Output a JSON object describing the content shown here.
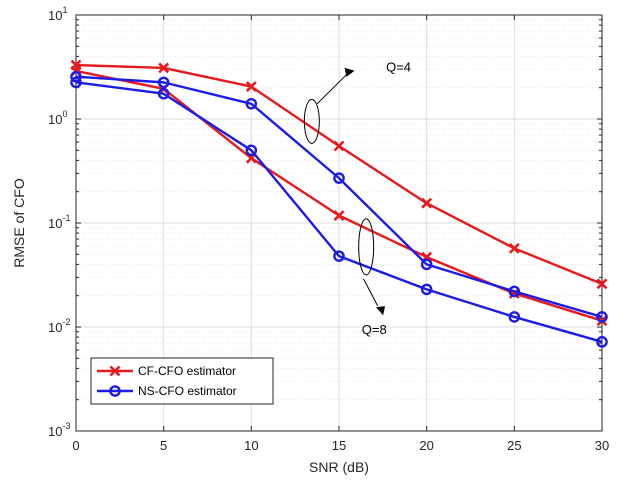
{
  "chart_data": {
    "type": "line",
    "xlabel": "SNR (dB)",
    "ylabel": "RMSE of CFO",
    "xlim": [
      0,
      30
    ],
    "ylim": [
      0.001,
      10
    ],
    "yscale": "log",
    "grid": true,
    "legend_position": "bottom-left",
    "x": [
      0,
      5,
      10,
      15,
      20,
      25,
      30
    ],
    "x_ticks": [
      "0",
      "5",
      "10",
      "15",
      "20",
      "25",
      "30"
    ],
    "y_ticks": [
      {
        "value": 0.001,
        "base": "10",
        "exp": "-3"
      },
      {
        "value": 0.01,
        "base": "10",
        "exp": "-2"
      },
      {
        "value": 0.1,
        "base": "10",
        "exp": "-1"
      },
      {
        "value": 1,
        "base": "10",
        "exp": "0"
      },
      {
        "value": 10,
        "base": "10",
        "exp": "1"
      }
    ],
    "series": [
      {
        "name": "CF-CFO estimator",
        "group": "Q=4",
        "color": "#e8191c",
        "marker": "x",
        "values": [
          3.3,
          3.1,
          2.05,
          0.55,
          0.155,
          0.057,
          0.026
        ]
      },
      {
        "name": "CF-CFO estimator",
        "group": "Q=8",
        "color": "#e8191c",
        "marker": "x",
        "values": [
          2.9,
          1.95,
          0.42,
          0.118,
          0.047,
          0.021,
          0.0115
        ]
      },
      {
        "name": "NS-CFO estimator",
        "group": "Q=4",
        "color": "#1c1ce8",
        "marker": "o",
        "values": [
          2.55,
          2.25,
          1.4,
          0.27,
          0.04,
          0.022,
          0.0125
        ]
      },
      {
        "name": "NS-CFO estimator",
        "group": "Q=8",
        "color": "#1c1ce8",
        "marker": "o",
        "values": [
          2.25,
          1.75,
          0.5,
          0.048,
          0.023,
          0.0125,
          0.0072
        ]
      }
    ],
    "legend": [
      {
        "label": "CF-CFO estimator",
        "color": "#e8191c",
        "marker": "x"
      },
      {
        "label": "NS-CFO estimator",
        "color": "#1c1ce8",
        "marker": "o"
      }
    ],
    "annotations": [
      {
        "text": "Q=4",
        "x": 18.2,
        "y": 3.2
      },
      {
        "text": "Q=8",
        "x": 16.3,
        "y": 0.0096
      }
    ]
  }
}
